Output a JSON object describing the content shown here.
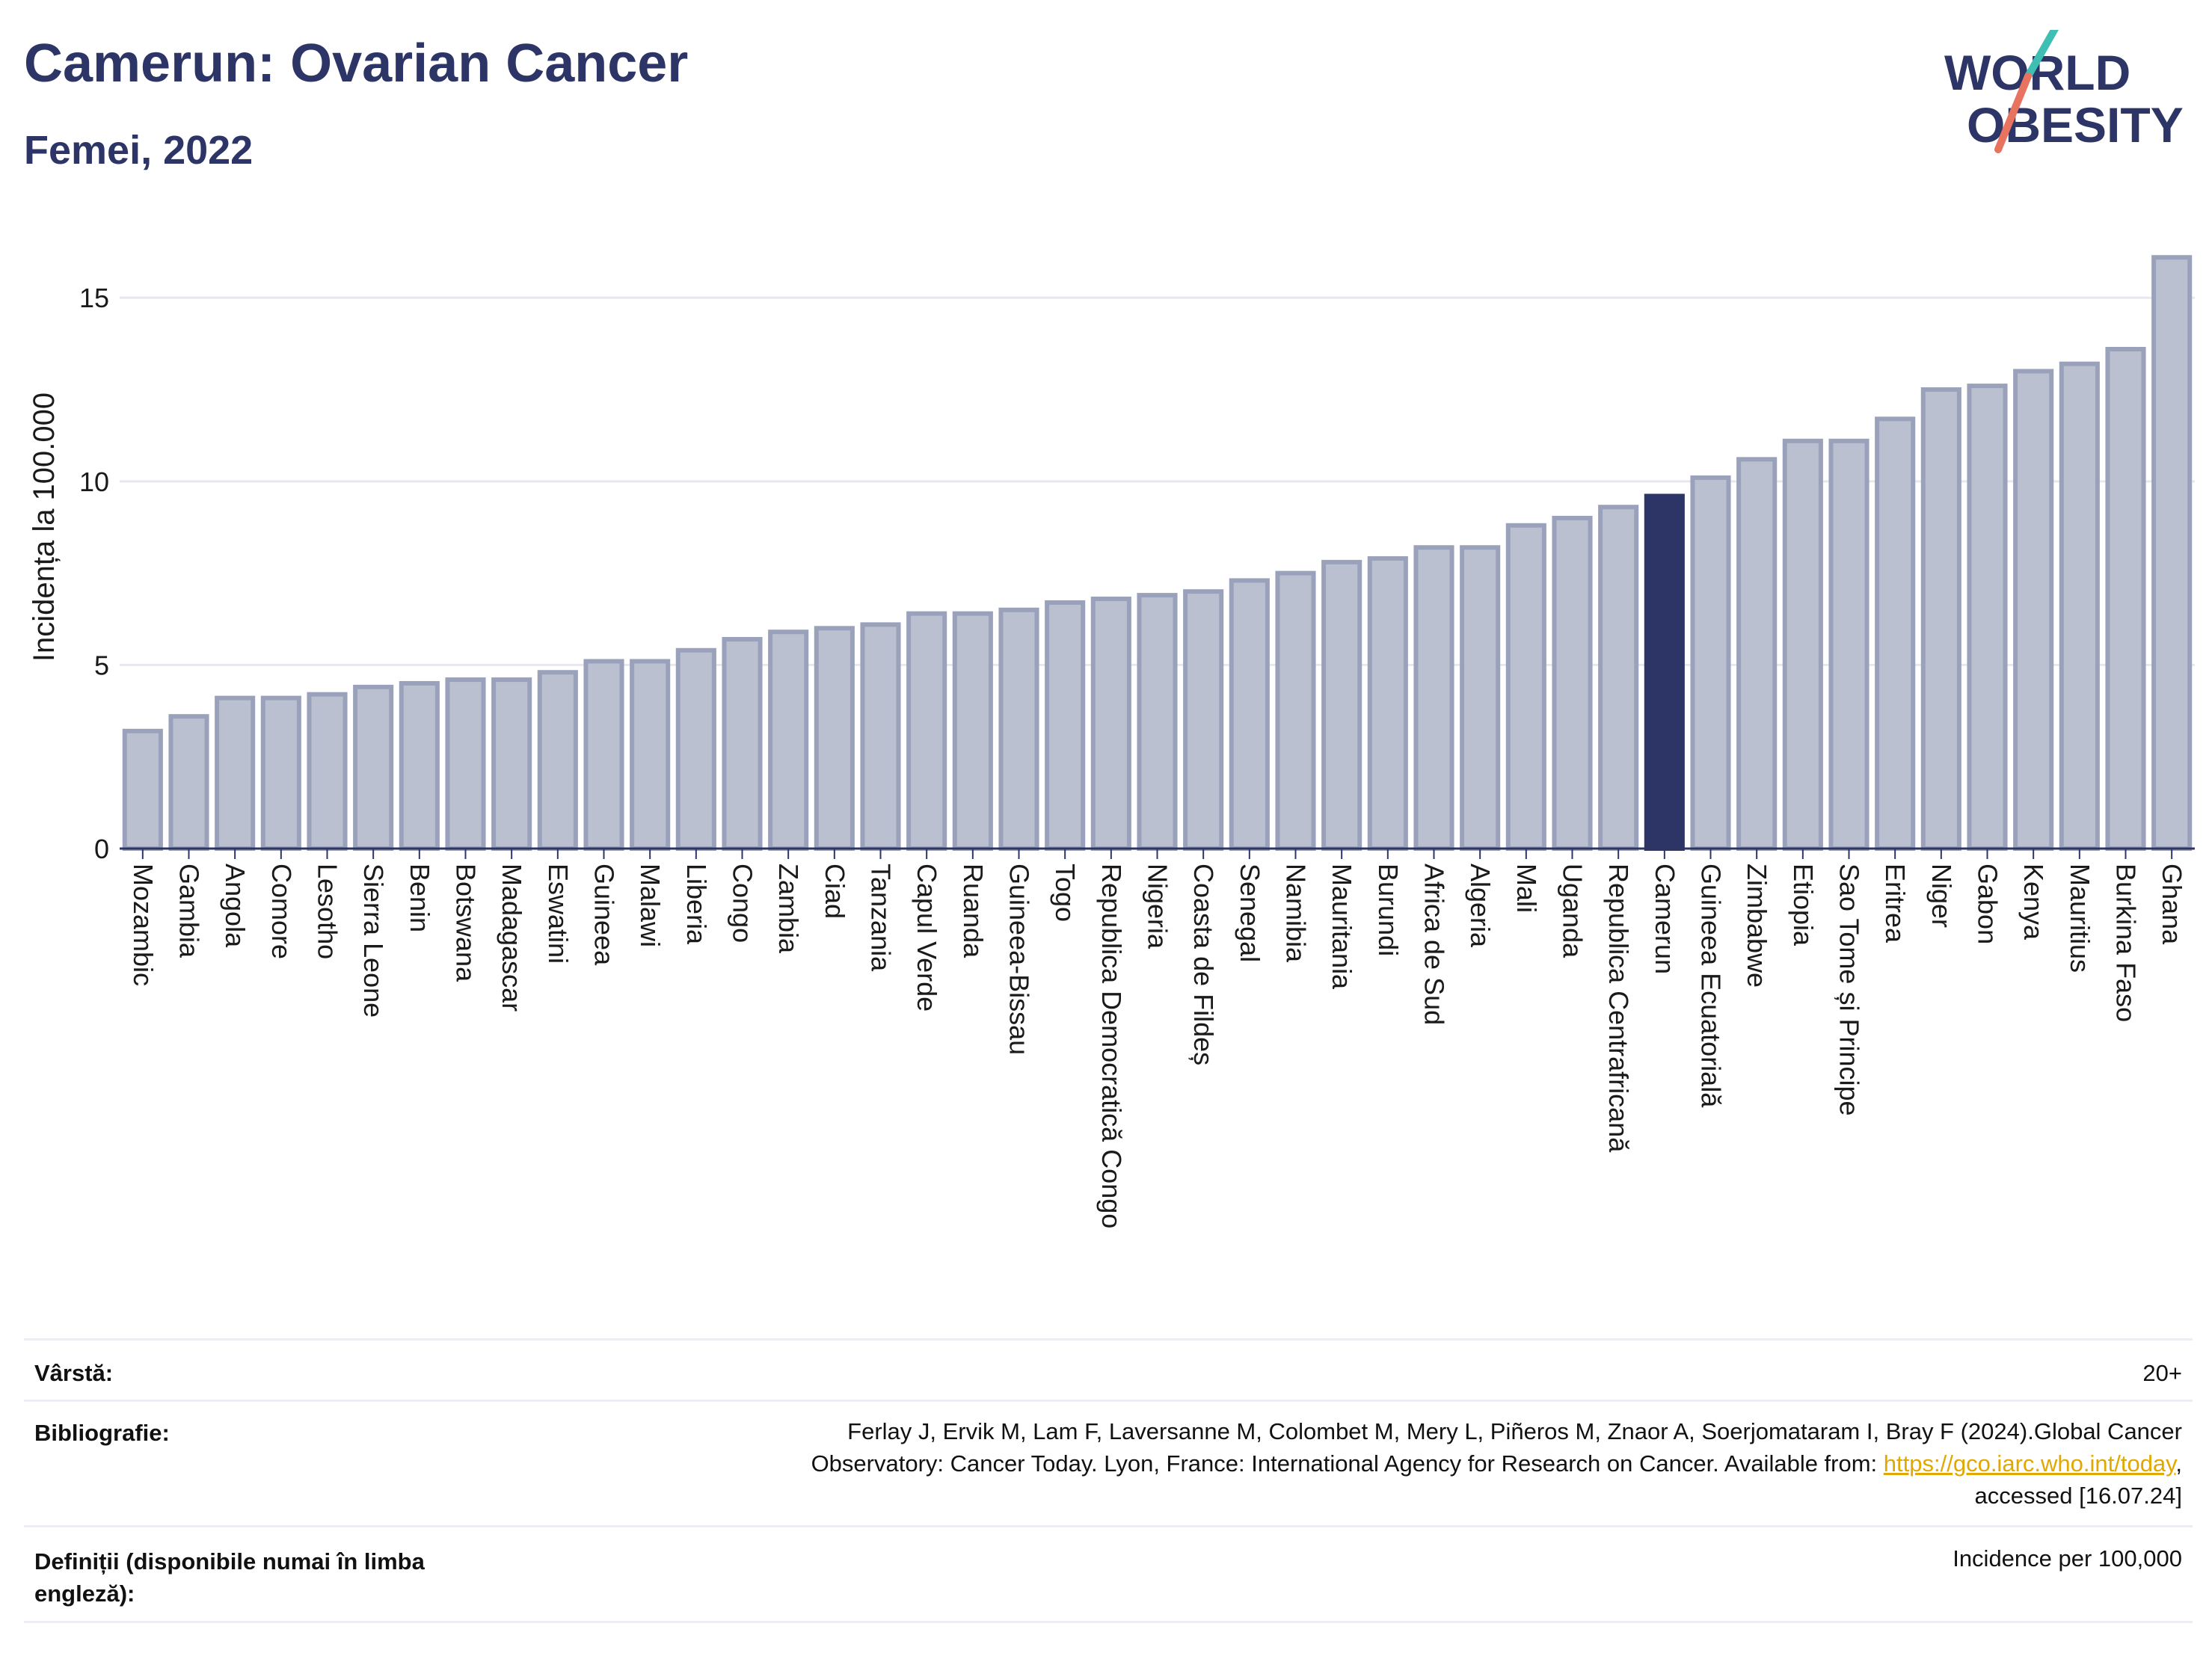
{
  "header": {
    "title": "Camerun: Ovarian Cancer",
    "subtitle": "Femei, 2022",
    "logo_line1": "WORLD",
    "logo_line2": "OBESITY"
  },
  "colors": {
    "bar": "#bbc0d0",
    "bar_border": "#9aa2bb",
    "highlight": "#2c3566",
    "grid": "#e6e8ee",
    "axis": "#2c3566",
    "logo_teal": "#3fbfb4",
    "logo_coral": "#e8735f"
  },
  "chart_data": {
    "type": "bar",
    "ylabel": "Incidența la 100.000",
    "ylim": [
      0,
      17
    ],
    "yticks": [
      0,
      5,
      10,
      15
    ],
    "highlight": "Camerun",
    "grid": true,
    "categories": [
      "Mozambic",
      "Gambia",
      "Angola",
      "Comore",
      "Lesotho",
      "Sierra Leone",
      "Benin",
      "Botswana",
      "Madagascar",
      "Eswatini",
      "Guineea",
      "Malawi",
      "Liberia",
      "Congo",
      "Zambia",
      "Ciad",
      "Tanzania",
      "Capul Verde",
      "Ruanda",
      "Guineea-Bissau",
      "Togo",
      "Republica Democratică Congo",
      "Nigeria",
      "Coasta de Fildeș",
      "Senegal",
      "Namibia",
      "Mauritania",
      "Burundi",
      "Africa de Sud",
      "Algeria",
      "Mali",
      "Uganda",
      "Republica Centrafricană",
      "Camerun",
      "Guineea Ecuatorială",
      "Zimbabwe",
      "Etiopia",
      "Sao Tome și Principe",
      "Eritrea",
      "Niger",
      "Gabon",
      "Kenya",
      "Mauritius",
      "Burkina Faso",
      "Ghana"
    ],
    "values": [
      3.2,
      3.6,
      4.1,
      4.1,
      4.2,
      4.4,
      4.5,
      4.6,
      4.6,
      4.8,
      5.1,
      5.1,
      5.4,
      5.7,
      5.9,
      6.0,
      6.1,
      6.4,
      6.4,
      6.5,
      6.7,
      6.8,
      6.9,
      7.0,
      7.3,
      7.5,
      7.8,
      7.9,
      8.2,
      8.2,
      8.8,
      9.0,
      9.3,
      9.6,
      10.1,
      10.6,
      11.1,
      11.1,
      11.7,
      12.5,
      12.6,
      13.0,
      13.2,
      13.6,
      16.1
    ]
  },
  "info": {
    "age_label": "Vârstă:",
    "age_value": "20+",
    "bib_label": "Bibliografie:",
    "bib_line1": "Ferlay J, Ervik M, Lam F, Laversanne M, Colombet M, Mery L, Piñeros M, Znaor A, Soerjomataram I, Bray F (2024).Global Cancer",
    "bib_line2": "Observatory: Cancer Today. Lyon, France: International Agency for Research on Cancer. Available from: ",
    "bib_link": "https://gco.iarc.who.int/today",
    "bib_line2_end": ",",
    "bib_line3": "accessed [16.07.24]",
    "def_label_line1": "Definiții (disponibile numai în limba",
    "def_label_line2": "engleză):",
    "def_value": "Incidence per 100,000"
  }
}
